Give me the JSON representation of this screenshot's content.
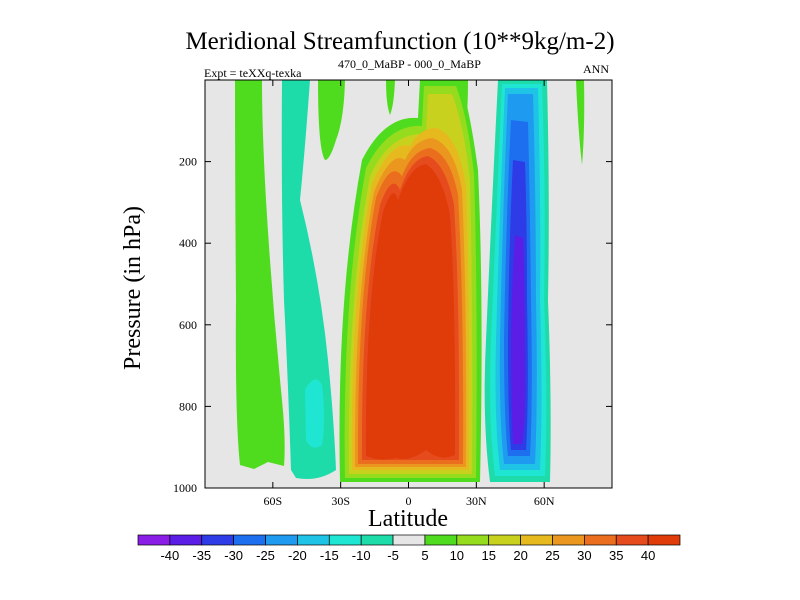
{
  "chart_data": {
    "type": "contour",
    "title": "Meridional Streamfunction (10**9kg/m-2)",
    "subtitle_left": "Expt = teXXq-texka",
    "subtitle_center": "470_0_MaBP - 000_0_MaBP",
    "subtitle_right": "ANN",
    "xlabel": "Latitude",
    "ylabel": "Pressure (in hPa)",
    "xlim": [
      -90,
      90
    ],
    "ylim": [
      1000,
      0
    ],
    "x_ticks": [
      -60,
      -30,
      0,
      30,
      60
    ],
    "x_tick_labels": [
      "60S",
      "30S",
      "0",
      "30N",
      "60N"
    ],
    "y_ticks": [
      200,
      400,
      600,
      800,
      1000
    ],
    "y_tick_labels": [
      "200",
      "400",
      "600",
      "800",
      "1000"
    ],
    "colorbar": {
      "levels": [
        -40,
        -35,
        -30,
        -25,
        -20,
        -15,
        -10,
        -5,
        5,
        10,
        15,
        20,
        25,
        30,
        35,
        40
      ],
      "labels": [
        "-40",
        "-35",
        "-30",
        "-25",
        "-20",
        "-15",
        "-10",
        "-5",
        "5",
        "10",
        "15",
        "20",
        "25",
        "30",
        "35",
        "40"
      ],
      "colors": [
        "#8a1ee6",
        "#5a1ee6",
        "#2d3ce6",
        "#1e6ef0",
        "#1e9bf0",
        "#1ec3e6",
        "#1ee6d2",
        "#1edcaa",
        "#e6e6e6",
        "#50dc1e",
        "#96dc1e",
        "#c8d21e",
        "#e6b91e",
        "#eb961e",
        "#eb6e1e",
        "#e64b1e",
        "#e03c0a"
      ]
    }
  }
}
